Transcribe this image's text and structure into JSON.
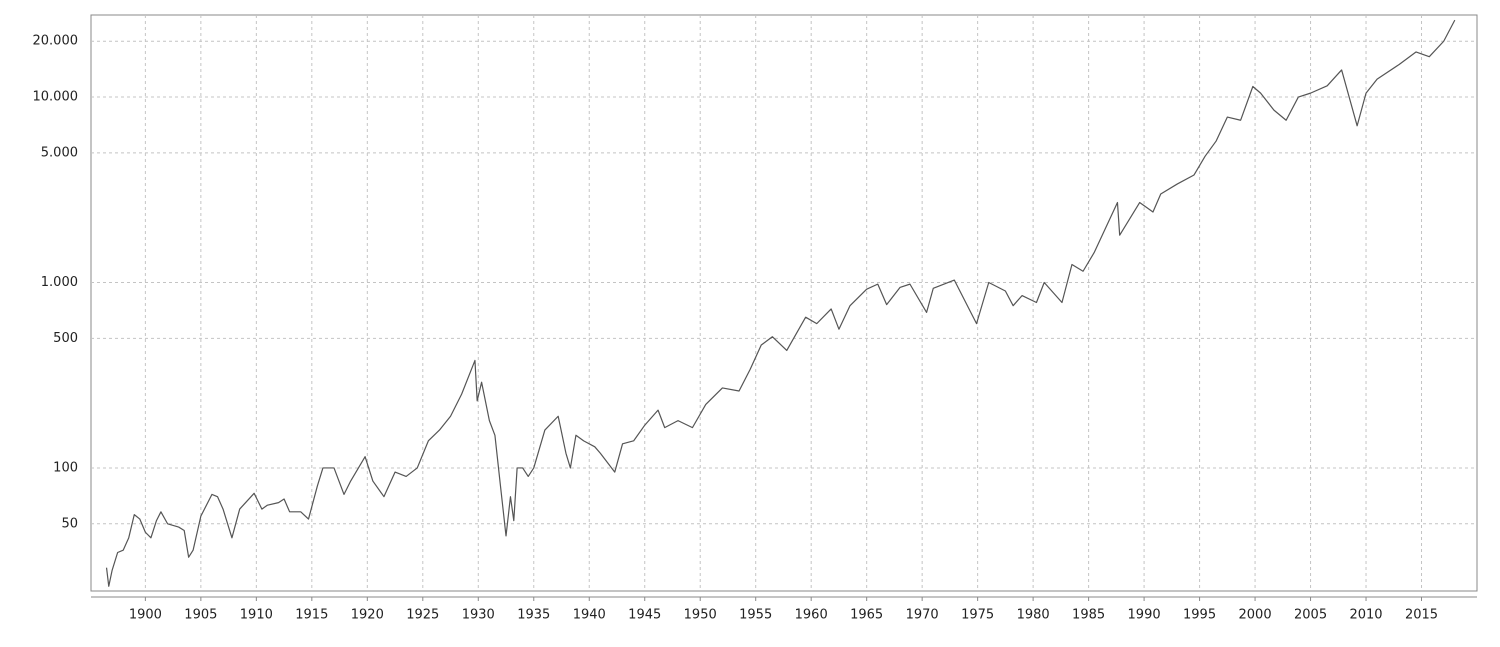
{
  "chart_data": {
    "type": "line",
    "x": [
      1896.5,
      1896.7,
      1897,
      1897.5,
      1898,
      1898.5,
      1899,
      1899.5,
      1900,
      1900.5,
      1901,
      1901.4,
      1902,
      1903,
      1903.5,
      1903.9,
      1904.3,
      1905,
      1906,
      1906.5,
      1907,
      1907.8,
      1908.5,
      1909.8,
      1910.5,
      1911,
      1912,
      1912.5,
      1913,
      1914,
      1914.7,
      1915.5,
      1916,
      1917,
      1917.9,
      1918.5,
      1919.8,
      1920.5,
      1921.5,
      1922.5,
      1923.5,
      1924.5,
      1925.5,
      1926.5,
      1927.5,
      1928.5,
      1929.7,
      1929.9,
      1930.3,
      1931,
      1931.5,
      1932,
      1932.5,
      1932.9,
      1933.2,
      1933.5,
      1934,
      1934.5,
      1935,
      1936,
      1937.2,
      1937.9,
      1938.3,
      1938.8,
      1939.5,
      1940.5,
      1941,
      1942.3,
      1943,
      1944,
      1945,
      1946.2,
      1946.8,
      1948,
      1949.3,
      1950.5,
      1952,
      1953.5,
      1954.5,
      1955.5,
      1956.5,
      1957.8,
      1959.5,
      1960.5,
      1961.8,
      1962.5,
      1963.5,
      1965,
      1966,
      1966.8,
      1968,
      1968.9,
      1970.4,
      1971,
      1972.9,
      1974.9,
      1976,
      1977.5,
      1978.2,
      1979,
      1980.3,
      1981,
      1982.6,
      1983.5,
      1984.5,
      1985.5,
      1987.6,
      1987.8,
      1989.6,
      1990.8,
      1991.5,
      1993,
      1994.5,
      1995.5,
      1996.5,
      1997.5,
      1998.7,
      1999.8,
      2000.5,
      2001.7,
      2002.8,
      2003.9,
      2005,
      2006.5,
      2007.8,
      2009.2,
      2010,
      2011,
      2013,
      2014.5,
      2015.7,
      2017,
      2018
    ],
    "values": [
      29,
      23,
      28,
      35,
      36,
      42,
      56,
      53,
      45,
      42,
      52,
      58,
      50,
      48,
      46,
      33,
      36,
      55,
      72,
      70,
      60,
      42,
      60,
      73,
      60,
      63,
      65,
      68,
      58,
      58,
      53,
      80,
      100,
      100,
      72,
      85,
      115,
      85,
      70,
      95,
      90,
      100,
      140,
      160,
      190,
      250,
      380,
      230,
      290,
      180,
      150,
      80,
      43,
      70,
      52,
      100,
      100,
      90,
      100,
      160,
      190,
      120,
      100,
      150,
      140,
      130,
      120,
      95,
      135,
      140,
      170,
      205,
      165,
      180,
      165,
      220,
      270,
      260,
      340,
      460,
      510,
      430,
      650,
      600,
      720,
      560,
      750,
      920,
      980,
      760,
      940,
      980,
      690,
      930,
      1030,
      600,
      1000,
      900,
      750,
      850,
      780,
      1000,
      780,
      1250,
      1150,
      1450,
      2700,
      1800,
      2700,
      2400,
      3000,
      3400,
      3800,
      4800,
      5800,
      7800,
      7500,
      11400,
      10500,
      8500,
      7500,
      10000,
      10500,
      11500,
      14000,
      7000,
      10500,
      12500,
      15000,
      17500,
      16500,
      20000,
      26000
    ],
    "color": "#555555",
    "xlim": [
      1895.1,
      2020
    ],
    "xticks": [
      1900,
      1905,
      1910,
      1915,
      1920,
      1925,
      1930,
      1935,
      1940,
      1945,
      1950,
      1955,
      1960,
      1965,
      1970,
      1975,
      1980,
      1985,
      1990,
      1995,
      2000,
      2005,
      2010,
      2015
    ],
    "ylim": [
      21.7,
      27700
    ],
    "yscale": "log",
    "yticks": [
      {
        "value": 20000,
        "label": "20.000"
      },
      {
        "value": 10000,
        "label": "10.000"
      },
      {
        "value": 5000,
        "label": "5.000"
      },
      {
        "value": 1000,
        "label": "1.000"
      },
      500,
      100,
      50
    ],
    "grid": true
  }
}
